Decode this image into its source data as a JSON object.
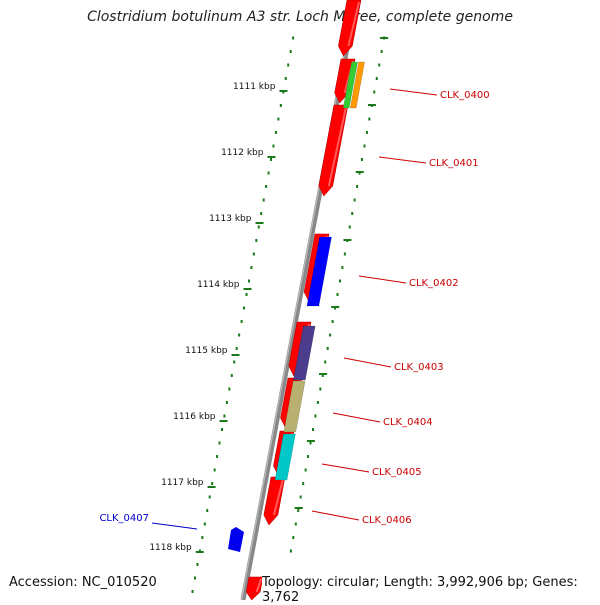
{
  "title": "Clostridium botulinum A3 str. Loch Maree, complete genome",
  "accession": "Accession: NC_010520",
  "summary": "Topology: circular; Length: 3,992,906 bp; Genes: 3,762",
  "colors": {
    "backbone": "#888888",
    "ruler": "#1a7a1a",
    "forward_gene": "#ff0000",
    "label_forward": "#cc0000",
    "label_reverse": "#0000cc"
  },
  "ticks": [
    {
      "label": "1111 kbp"
    },
    {
      "label": "1112 kbp"
    },
    {
      "label": "1113 kbp"
    },
    {
      "label": "1114 kbp"
    },
    {
      "label": "1115 kbp"
    },
    {
      "label": "1116 kbp"
    },
    {
      "label": "1117 kbp"
    },
    {
      "label": "1118 kbp"
    }
  ],
  "genes": [
    {
      "name": "CLK_0400",
      "strand": "forward",
      "cog_color": "#33cc33",
      "cog_color_2": "#ff9900"
    },
    {
      "name": "CLK_0401",
      "strand": "forward"
    },
    {
      "name": "CLK_0402",
      "strand": "forward",
      "cog_color": "#0000ff"
    },
    {
      "name": "CLK_0403",
      "strand": "forward",
      "cog_color": "#4b3c8c"
    },
    {
      "name": "CLK_0404",
      "strand": "forward",
      "cog_color": "#b8b070"
    },
    {
      "name": "CLK_0405",
      "strand": "forward",
      "cog_color": "#00c8c8"
    },
    {
      "name": "CLK_0406",
      "strand": "forward"
    },
    {
      "name": "CLK_0407",
      "strand": "reverse",
      "cog_color": "#0000ee"
    }
  ]
}
